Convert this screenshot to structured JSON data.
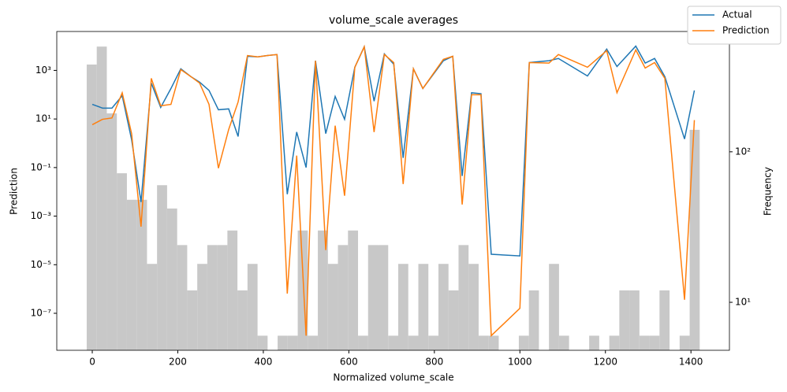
{
  "chart_data": {
    "type": "line",
    "title": "volume_scale averages",
    "xlabel": "Normalized volume_scale",
    "ylabel": "Prediction",
    "y2label": "Frequency",
    "yscale": "log",
    "y2scale": "log",
    "legend": "upper right",
    "xlim": [
      -83,
      1490
    ],
    "xticks": [
      0,
      200,
      400,
      600,
      800,
      1000,
      1200,
      1400
    ],
    "ylim": [
      3e-09,
      40000
    ],
    "yticks": [
      {
        "value": 1e-07,
        "label": "10⁻⁷"
      },
      {
        "value": 1e-05,
        "label": "10⁻⁵"
      },
      {
        "value": 0.001,
        "label": "10⁻³"
      },
      {
        "value": 0.1,
        "label": "10⁻¹"
      },
      {
        "value": 10,
        "label": "10¹"
      },
      {
        "value": 1000,
        "label": "10³"
      }
    ],
    "y2lim": [
      4.8,
      630
    ],
    "y2ticks": [
      {
        "value": 10,
        "label": "10¹"
      },
      {
        "value": 100,
        "label": "10²"
      }
    ],
    "x": [
      0,
      24,
      46,
      70,
      92,
      114,
      138,
      160,
      184,
      207,
      231,
      251,
      273,
      295,
      319,
      341,
      363,
      387,
      410,
      432,
      456,
      478,
      500,
      522,
      546,
      568,
      590,
      614,
      636,
      659,
      683,
      705,
      727,
      751,
      773,
      821,
      843,
      865,
      887,
      909,
      933,
      1000,
      1022,
      1068,
      1090,
      1158,
      1203,
      1227,
      1271,
      1293,
      1315,
      1339,
      1385,
      1408
    ],
    "series": [
      {
        "name": "Actual",
        "color": "#1f77b4",
        "values": [
          40,
          28,
          28,
          91,
          1.4,
          0.0038,
          300,
          30,
          180,
          1160,
          550,
          330,
          150,
          24,
          26,
          1.9,
          3800,
          3600,
          4100,
          4500,
          0.008,
          2.9,
          0.1,
          2500,
          2.5,
          85,
          9.7,
          1350,
          9400,
          54,
          4800,
          1800,
          0.25,
          1160,
          180,
          2500,
          3800,
          0.045,
          120,
          110,
          2.7e-05,
          2.3e-05,
          2100,
          2500,
          3100,
          590,
          7500,
          1450,
          10000,
          2000,
          3100,
          550,
          1.5,
          150
        ]
      },
      {
        "name": "Prediction",
        "color": "#ff7f0e",
        "values": [
          5.8,
          9.7,
          11,
          120,
          2.5,
          0.00037,
          470,
          35,
          40,
          1080,
          550,
          300,
          40,
          0.094,
          3.7,
          50,
          4100,
          3600,
          4100,
          4500,
          6.5e-07,
          0.31,
          1.2e-08,
          2500,
          4e-05,
          5.3,
          0.0069,
          1350,
          9400,
          2.9,
          4500,
          2100,
          0.021,
          1160,
          180,
          2850,
          3800,
          0.003,
          99,
          99,
          1.2e-08,
          1.6e-07,
          2100,
          2000,
          4500,
          1350,
          6500,
          120,
          7000,
          1250,
          2100,
          470,
          3.6e-07,
          9
        ]
      }
    ],
    "histogram": {
      "axis": "y2",
      "color": "#c8c8c8",
      "bins": [
        -13,
        10.5,
        34,
        57.5,
        81,
        104.5,
        128,
        151.5,
        175,
        198.5,
        222,
        245.5,
        269,
        292.5,
        316,
        339.5,
        363,
        386.5,
        410,
        433.5,
        457,
        480.5,
        504,
        527.5,
        551,
        574.5,
        598,
        621.5,
        645,
        668.5,
        692,
        715.5,
        739,
        762.5,
        786,
        809.5,
        833,
        856.5,
        880,
        903.5,
        927,
        950.5,
        974,
        997.5,
        1021,
        1044.5,
        1068,
        1091.5,
        1115,
        1138.5,
        1162,
        1185.5,
        1209,
        1232.5,
        1256,
        1279.5,
        1303,
        1326.5,
        1350,
        1373.5,
        1397,
        1420.5
      ],
      "counts": [
        380,
        500,
        180,
        72,
        48,
        48,
        18,
        60,
        42,
        24,
        12,
        18,
        24,
        24,
        30,
        12,
        18,
        6,
        0,
        6,
        6,
        30,
        6,
        30,
        18,
        24,
        30,
        6,
        24,
        24,
        6,
        18,
        6,
        18,
        6,
        18,
        12,
        24,
        18,
        6,
        6,
        0,
        0,
        6,
        12,
        0,
        18,
        6,
        0,
        0,
        6,
        0,
        6,
        12,
        12,
        6,
        6,
        12,
        0,
        6,
        140
      ]
    }
  }
}
